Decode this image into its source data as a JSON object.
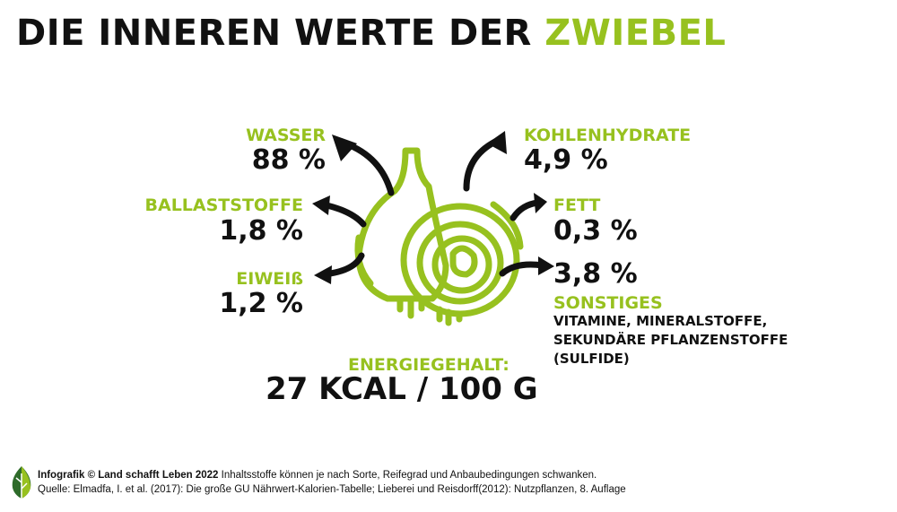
{
  "title": {
    "main": "DIE INNEREN WERTE DER",
    "accent": "ZWIEBEL"
  },
  "nutrients": {
    "wasser": {
      "label": "WASSER",
      "value": "88 %"
    },
    "ballaststoffe": {
      "label": "BALLASTSTOFFE",
      "value": "1,8 %"
    },
    "eiweiss": {
      "label": "EIWEIß",
      "value": "1,2 %"
    },
    "kohlenhydrate": {
      "label": "KOHLENHYDRATE",
      "value": "4,9 %"
    },
    "fett": {
      "label": "FETT",
      "value": "0,3 %"
    },
    "sonstiges": {
      "value": "3,8 %",
      "label": "SONSTIGES",
      "note_lines": [
        "VITAMINE, MINERALSTOFFE,",
        "SEKUNDÄRE PFLANZENSTOFFE",
        "(SULFIDE)"
      ]
    }
  },
  "energy": {
    "label": "ENERGIEGEHALT:",
    "value": "27 KCAL / 100 G"
  },
  "footer": {
    "brand": "Infografik © Land schafft Leben 2022",
    "note": " Inhaltsstoffe können je nach Sorte, Reifegrad und Anbaubedingungen schwanken.",
    "source": "Quelle: Elmadfa, I. et al. (2017): Die große GU Nährwert-Kalorien-Tabelle; Lieberei und Reisdorff(2012): Nutzpflanzen, 8. Auflage"
  },
  "colors": {
    "accent": "#97c11f",
    "text": "#111111",
    "logo_dark": "#2e6b2a"
  },
  "icons": [
    "onion-illustration-icon",
    "arrow-icon",
    "leaf-logo-icon"
  ]
}
